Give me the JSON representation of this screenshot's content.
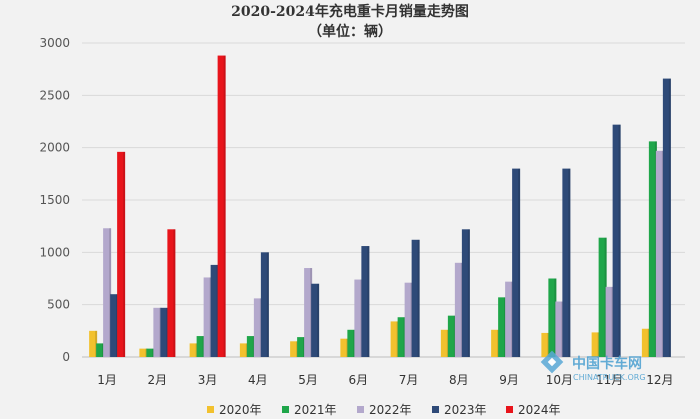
{
  "chart_data": {
    "type": "bar",
    "title": "2020-2024年充电重卡月销量走势图",
    "subtitle": "（单位：辆）",
    "categories": [
      "1月",
      "2月",
      "3月",
      "4月",
      "5月",
      "6月",
      "7月",
      "8月",
      "9月",
      "10月",
      "11月",
      "12月"
    ],
    "ylim": [
      0,
      3000
    ],
    "yticks": [
      "0",
      "500",
      "1000",
      "1500",
      "2000",
      "2500",
      "3000"
    ],
    "grid": true,
    "legend_position": "bottom",
    "series": [
      {
        "name": "2020年",
        "color": "#f2c12e",
        "values": [
          250,
          80,
          130,
          130,
          150,
          175,
          340,
          260,
          260,
          230,
          235,
          270
        ]
      },
      {
        "name": "2021年",
        "color": "#1fa64a",
        "values": [
          130,
          80,
          200,
          200,
          190,
          260,
          380,
          395,
          570,
          750,
          1140,
          2060
        ]
      },
      {
        "name": "2022年",
        "color": "#b3a8cc",
        "values": [
          1230,
          470,
          760,
          560,
          850,
          740,
          710,
          900,
          720,
          530,
          670,
          1970
        ]
      },
      {
        "name": "2023年",
        "color": "#2e4a78",
        "values": [
          600,
          470,
          880,
          1000,
          700,
          1060,
          1120,
          1220,
          1800,
          1800,
          2220,
          2660
        ]
      },
      {
        "name": "2024年",
        "color": "#e8141b",
        "values": [
          1960,
          1220,
          2880,
          null,
          null,
          null,
          null,
          null,
          null,
          null,
          null,
          null
        ]
      }
    ]
  },
  "watermark": {
    "main": "中国卡车网",
    "sub": "CHINATRUCK.ORG"
  }
}
